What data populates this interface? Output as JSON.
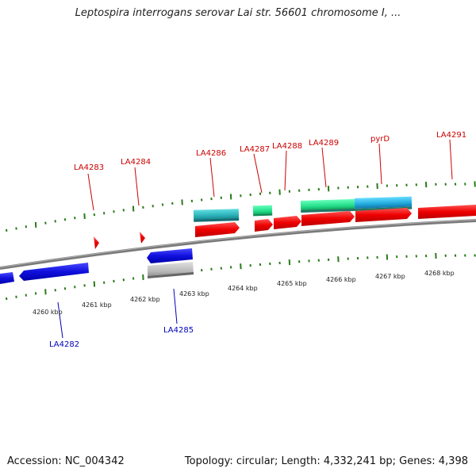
{
  "header": {
    "title": "Leptospira interrogans serovar Lai str. 56601 chromosome I, ..."
  },
  "footer": {
    "accession": "Accession: NC_004342",
    "summary": "Topology: circular; Length: 4,332,241 bp; Genes: 4,398"
  },
  "colors": {
    "forward_gene": "#ee0000",
    "reverse_gene": "#1010dd",
    "reverse_label": "#0000bb",
    "forward_label": "#cc0000",
    "teal_feature": "#2ab0b8",
    "green_feature": "#22dd88",
    "light_blue_feature": "#22aadd",
    "gray_feature": "#b8b8b8",
    "backbone": "#808080",
    "tick": "#2a7a1a",
    "scale_label": "#222222"
  },
  "map": {
    "scale_labels": [
      "4260 kbp",
      "4261 kbp",
      "4262 kbp",
      "4263 kbp",
      "4264 kbp",
      "4265 kbp",
      "4266 kbp",
      "4267 kbp",
      "4268 kbp"
    ],
    "forward_labels": [
      "LA4283",
      "LA4284",
      "LA4286",
      "LA4287",
      "LA4288",
      "LA4289",
      "pyrD",
      "LA4291"
    ],
    "reverse_labels": [
      "LA4282",
      "LA4285"
    ]
  }
}
